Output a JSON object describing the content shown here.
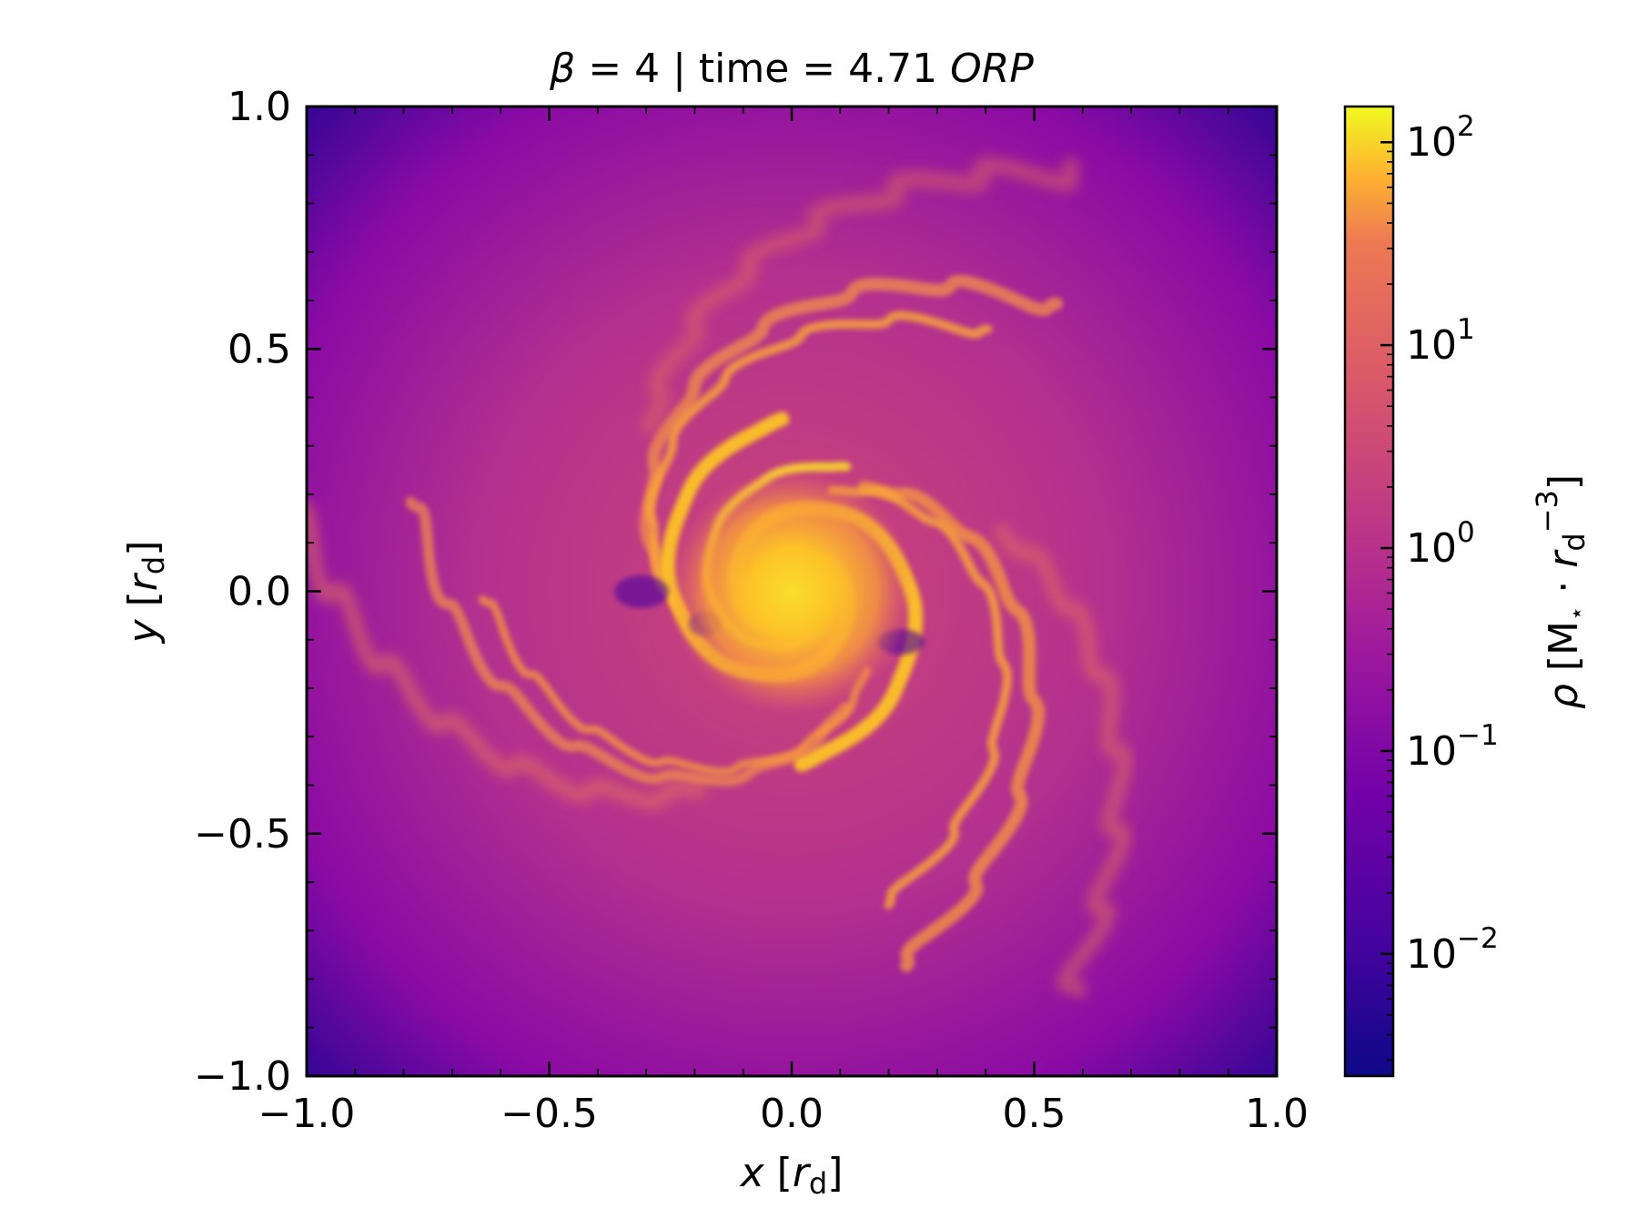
{
  "chart_data": {
    "type": "heatmap",
    "title": {
      "symbol": "β",
      "middle": " = 4 | time = 4.71 ",
      "unit": "ORP"
    },
    "xlabel": {
      "var": "x",
      "open": " [",
      "sym": "r",
      "sub": "d",
      "close": "]"
    },
    "ylabel": {
      "var": "y",
      "open": " [",
      "sym": "r",
      "sub": "d",
      "close": "]"
    },
    "xlim": [
      -1.0,
      1.0
    ],
    "ylim": [
      -1.0,
      1.0
    ],
    "xticks": [
      -1.0,
      -0.5,
      0.0,
      0.5,
      1.0
    ],
    "yticks": [
      -1.0,
      -0.5,
      0.0,
      0.5,
      1.0
    ],
    "xtick_labels": [
      "−1.0",
      "−0.5",
      "0.0",
      "0.5",
      "1.0"
    ],
    "ytick_labels": [
      "−1.0",
      "−0.5",
      "0.0",
      "0.5",
      "1.0"
    ],
    "colormap": "plasma",
    "colors": [
      "#0d0887",
      "#5c01a6",
      "#9c179e",
      "#cc4778",
      "#ed7953",
      "#fdb42f",
      "#f0f921"
    ],
    "colorbar": {
      "scale": "log",
      "range": [
        0.0025,
        150
      ],
      "ticks": [
        0.01,
        0.1,
        1,
        10,
        100
      ],
      "tick_labels": [
        {
          "base": "10",
          "exp": "−2"
        },
        {
          "base": "10",
          "exp": "−1"
        },
        {
          "base": "10",
          "exp": "0"
        },
        {
          "base": "10",
          "exp": "1"
        },
        {
          "base": "10",
          "exp": "2"
        }
      ],
      "label": {
        "var": "ρ",
        "open": " [M",
        "star": "⋆",
        "dot": " · ",
        "sym": "r",
        "sub": "d",
        "sup": "−3",
        "close": "]"
      }
    },
    "field_description": "gas density, log scale, spiral structure wound around the origin, peak near (0,0)"
  }
}
